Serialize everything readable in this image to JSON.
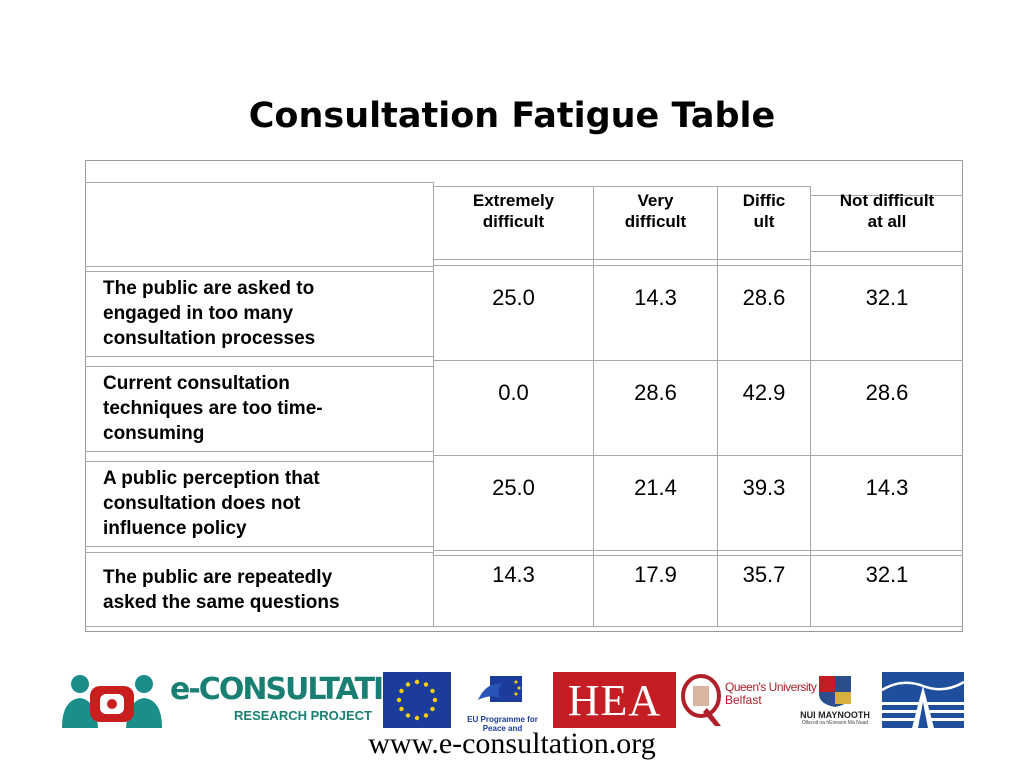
{
  "slide": {
    "title": "Consultation Fatigue Table",
    "url": "www.e-consultation.org"
  },
  "table": {
    "columns": [
      "Extremely difficult",
      "Very difficult",
      "Difficult",
      "Not difficult at all"
    ],
    "columns_display": [
      [
        "Extremely",
        "difficult"
      ],
      [
        "Very",
        "difficult"
      ],
      [
        "Diffic",
        "ult"
      ],
      [
        "Not difficult",
        "at all"
      ]
    ],
    "rows": [
      {
        "label_lines": [
          "The public are asked to",
          "engaged in too many",
          "consultation processes"
        ],
        "values": [
          "25.0",
          "14.3",
          "28.6",
          "32.1"
        ]
      },
      {
        "label_lines": [
          "Current consultation",
          "techniques are too time-",
          "consuming"
        ],
        "values": [
          "0.0",
          "28.6",
          "42.9",
          "28.6"
        ]
      },
      {
        "label_lines": [
          "A public perception that",
          "consultation does not",
          "influence policy"
        ],
        "values": [
          "25.0",
          "21.4",
          "39.3",
          "14.3"
        ]
      },
      {
        "label_lines": [
          "The public are repeatedly",
          "asked the same questions"
        ],
        "values": [
          "14.3",
          "17.9",
          "35.7",
          "32.1"
        ]
      }
    ]
  },
  "logos": {
    "econsultation_main": "e-CONSULTATION",
    "econsultation_sub": "RESEARCH PROJECT",
    "eu_programme": "EU Programme for Peace and Reconciliation",
    "hea": "HEA",
    "queens_line1": "Queen's University",
    "queens_line2": "Belfast",
    "nui": "NUI MAYNOOTH",
    "nui_motto": "Ollscoil na hÉireann Má Nuad"
  }
}
